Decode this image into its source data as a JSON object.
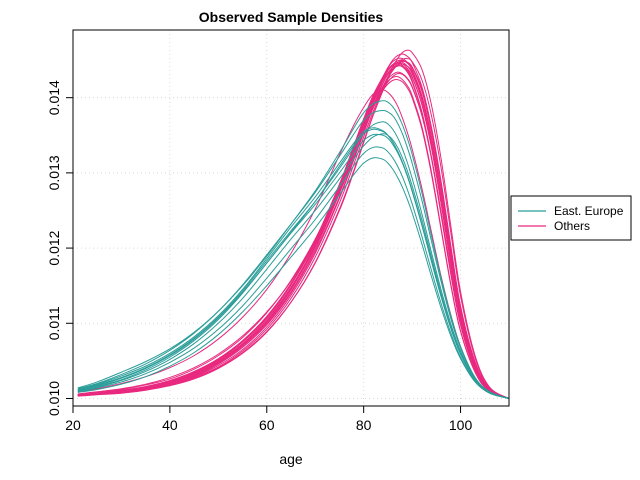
{
  "chart_data": {
    "type": "line",
    "title": "Observed Sample Densities",
    "xlabel": "age",
    "ylabel": "",
    "xlim": [
      20,
      110
    ],
    "ylim": [
      0.0099,
      0.0149
    ],
    "x_ticks": [
      20,
      40,
      60,
      80,
      100
    ],
    "y_ticks": [
      0.01,
      0.011,
      0.012,
      0.013,
      0.014
    ],
    "y_tick_labels": [
      "0.010",
      "0.011",
      "0.012",
      "0.013",
      "0.014"
    ],
    "grid": true,
    "legend": {
      "placement": "right",
      "entries": [
        "East. Europe",
        "Others"
      ]
    },
    "colors": {
      "East. Europe": "#2a9d99",
      "Others": "#e8297f"
    },
    "x": [
      21,
      25,
      30,
      35,
      40,
      45,
      50,
      55,
      60,
      65,
      70,
      75,
      78,
      80,
      82,
      84,
      85,
      86,
      87,
      88,
      89,
      90,
      92,
      94,
      96,
      98,
      100,
      103,
      106,
      110
    ],
    "series": [
      {
        "name": "East. Europe",
        "group": "East. Europe",
        "values": [
          0.0101,
          0.01015,
          0.01024,
          0.01036,
          0.01052,
          0.01073,
          0.011,
          0.01133,
          0.01172,
          0.01212,
          0.0125,
          0.01292,
          0.01319,
          0.01336,
          0.01348,
          0.01352,
          0.0135,
          0.01344,
          0.01334,
          0.0132,
          0.01303,
          0.01283,
          0.01238,
          0.01188,
          0.01139,
          0.01095,
          0.0106,
          0.01025,
          0.01008,
          0.01
        ]
      },
      {
        "name": "East. Europe",
        "group": "East. Europe",
        "values": [
          0.01012,
          0.01018,
          0.01028,
          0.01041,
          0.01058,
          0.0108,
          0.01108,
          0.01143,
          0.01183,
          0.01223,
          0.01262,
          0.01306,
          0.01334,
          0.01352,
          0.01364,
          0.01368,
          0.01365,
          0.01358,
          0.01347,
          0.01332,
          0.01314,
          0.01293,
          0.01246,
          0.01194,
          0.01144,
          0.01099,
          0.01063,
          0.01026,
          0.01008,
          0.01
        ]
      },
      {
        "name": "East. Europe",
        "group": "East. Europe",
        "values": [
          0.01009,
          0.01014,
          0.01022,
          0.01033,
          0.01048,
          0.01067,
          0.01092,
          0.01123,
          0.0116,
          0.01199,
          0.01238,
          0.01282,
          0.0131,
          0.01326,
          0.01334,
          0.01333,
          0.01328,
          0.0132,
          0.01309,
          0.01295,
          0.01278,
          0.01259,
          0.01216,
          0.0117,
          0.01126,
          0.01087,
          0.01055,
          0.01023,
          0.01007,
          0.01
        ]
      },
      {
        "name": "East. Europe",
        "group": "East. Europe",
        "values": [
          0.01011,
          0.01017,
          0.01027,
          0.0104,
          0.01057,
          0.01079,
          0.01107,
          0.01141,
          0.0118,
          0.01221,
          0.01262,
          0.01309,
          0.01337,
          0.01352,
          0.01358,
          0.01355,
          0.0135,
          0.01341,
          0.01329,
          0.01314,
          0.01296,
          0.01276,
          0.01231,
          0.01183,
          0.01136,
          0.01094,
          0.0106,
          0.01025,
          0.01008,
          0.01
        ]
      },
      {
        "name": "East. Europe",
        "group": "East. Europe",
        "values": [
          0.01013,
          0.0102,
          0.01032,
          0.01046,
          0.01064,
          0.01087,
          0.01116,
          0.01151,
          0.01191,
          0.01232,
          0.01274,
          0.01322,
          0.01352,
          0.0137,
          0.0138,
          0.01383,
          0.01381,
          0.01376,
          0.01366,
          0.01352,
          0.01334,
          0.01313,
          0.01264,
          0.01209,
          0.01155,
          0.01106,
          0.01067,
          0.01027,
          0.01008,
          0.01
        ]
      },
      {
        "name": "East. Europe",
        "group": "East. Europe",
        "values": [
          0.01008,
          0.01012,
          0.01019,
          0.01029,
          0.01043,
          0.01061,
          0.01085,
          0.01115,
          0.0115,
          0.01188,
          0.01227,
          0.01271,
          0.01298,
          0.01313,
          0.0132,
          0.01318,
          0.01313,
          0.01305,
          0.01294,
          0.01281,
          0.01265,
          0.01247,
          0.01206,
          0.01162,
          0.0112,
          0.01083,
          0.01053,
          0.01022,
          0.01007,
          0.01
        ]
      },
      {
        "name": "East. Europe",
        "group": "East. Europe",
        "values": [
          0.01014,
          0.01022,
          0.01035,
          0.01049,
          0.01066,
          0.01088,
          0.01116,
          0.0115,
          0.01189,
          0.01232,
          0.01276,
          0.01327,
          0.0136,
          0.0138,
          0.01392,
          0.01396,
          0.01394,
          0.01388,
          0.01378,
          0.01364,
          0.01346,
          0.01325,
          0.01274,
          0.01216,
          0.0116,
          0.0111,
          0.01069,
          0.01028,
          0.01009,
          0.01
        ]
      },
      {
        "name": "East. Europe",
        "group": "East. Europe",
        "values": [
          0.0101,
          0.01016,
          0.01025,
          0.01038,
          0.01055,
          0.01077,
          0.01105,
          0.0114,
          0.0118,
          0.0122,
          0.01258,
          0.013,
          0.01327,
          0.01343,
          0.01351,
          0.0135,
          0.01346,
          0.01338,
          0.01327,
          0.01313,
          0.01296,
          0.01276,
          0.01231,
          0.01182,
          0.01135,
          0.01093,
          0.01059,
          0.01024,
          0.01008,
          0.01
        ]
      },
      {
        "name": "East. Europe",
        "group": "East. Europe",
        "values": [
          0.01012,
          0.01019,
          0.0103,
          0.01043,
          0.0106,
          0.01082,
          0.0111,
          0.01145,
          0.01186,
          0.01228,
          0.01268,
          0.01313,
          0.0134,
          0.01355,
          0.0136,
          0.01356,
          0.0135,
          0.01341,
          0.01329,
          0.01314,
          0.01297,
          0.01277,
          0.01232,
          0.01183,
          0.01136,
          0.01094,
          0.0106,
          0.01025,
          0.01008,
          0.01
        ]
      },
      {
        "name": "Others",
        "group": "Others",
        "values": [
          0.01005,
          0.01007,
          0.0101,
          0.01014,
          0.01021,
          0.01032,
          0.01048,
          0.0107,
          0.01101,
          0.01145,
          0.01203,
          0.01278,
          0.0133,
          0.01365,
          0.01397,
          0.01423,
          0.01433,
          0.0144,
          0.01443,
          0.01441,
          0.01434,
          0.01421,
          0.0138,
          0.01319,
          0.01243,
          0.01165,
          0.01098,
          0.01038,
          0.0101,
          0.01
        ]
      },
      {
        "name": "Others",
        "group": "Others",
        "values": [
          0.01005,
          0.01007,
          0.0101,
          0.01015,
          0.01022,
          0.01033,
          0.01049,
          0.01072,
          0.01103,
          0.01146,
          0.01202,
          0.01273,
          0.01322,
          0.01356,
          0.01387,
          0.01411,
          0.01421,
          0.01428,
          0.01432,
          0.01431,
          0.01425,
          0.01414,
          0.01377,
          0.0132,
          0.01247,
          0.0117,
          0.01101,
          0.01039,
          0.0101,
          0.01
        ]
      },
      {
        "name": "Others",
        "group": "Others",
        "values": [
          0.01004,
          0.01006,
          0.01009,
          0.01013,
          0.01019,
          0.01029,
          0.01044,
          0.01065,
          0.01095,
          0.01137,
          0.01193,
          0.01266,
          0.01318,
          0.01353,
          0.01387,
          0.01415,
          0.01428,
          0.01437,
          0.01443,
          0.01445,
          0.01442,
          0.01434,
          0.01402,
          0.01348,
          0.01275,
          0.01192,
          0.01116,
          0.01046,
          0.01012,
          0.01
        ]
      },
      {
        "name": "Others",
        "group": "Others",
        "values": [
          0.01005,
          0.01007,
          0.0101,
          0.01015,
          0.01022,
          0.01034,
          0.01051,
          0.01075,
          0.01107,
          0.01151,
          0.01209,
          0.01282,
          0.01333,
          0.01368,
          0.014,
          0.01425,
          0.01436,
          0.01443,
          0.01446,
          0.01445,
          0.01439,
          0.01428,
          0.01391,
          0.01333,
          0.01258,
          0.01178,
          0.01106,
          0.01041,
          0.01011,
          0.01
        ]
      },
      {
        "name": "Others",
        "group": "Others",
        "values": [
          0.01004,
          0.01006,
          0.01008,
          0.01012,
          0.01018,
          0.01028,
          0.01042,
          0.01063,
          0.01092,
          0.01133,
          0.01188,
          0.0126,
          0.01312,
          0.01348,
          0.01382,
          0.01412,
          0.01426,
          0.01436,
          0.01444,
          0.01448,
          0.01447,
          0.01441,
          0.01412,
          0.0136,
          0.01288,
          0.01203,
          0.01123,
          0.01049,
          0.01013,
          0.01
        ]
      },
      {
        "name": "Others",
        "group": "Others",
        "values": [
          0.01006,
          0.01008,
          0.01012,
          0.01018,
          0.01026,
          0.01039,
          0.01057,
          0.01081,
          0.01114,
          0.01157,
          0.01212,
          0.0128,
          0.01328,
          0.0136,
          0.01388,
          0.0141,
          0.01418,
          0.01423,
          0.01424,
          0.01421,
          0.01413,
          0.014,
          0.01359,
          0.01298,
          0.01224,
          0.0115,
          0.01089,
          0.01035,
          0.01009,
          0.01
        ]
      },
      {
        "name": "Others",
        "group": "Others",
        "values": [
          0.01004,
          0.01006,
          0.01009,
          0.01013,
          0.0102,
          0.0103,
          0.01046,
          0.01068,
          0.01099,
          0.01142,
          0.01199,
          0.01273,
          0.01326,
          0.01362,
          0.01396,
          0.01424,
          0.01436,
          0.01444,
          0.01449,
          0.0145,
          0.01446,
          0.01437,
          0.01403,
          0.01347,
          0.01272,
          0.01189,
          0.01113,
          0.01045,
          0.01012,
          0.01
        ]
      },
      {
        "name": "Others",
        "group": "Others",
        "values": [
          0.01005,
          0.01007,
          0.01011,
          0.01016,
          0.01024,
          0.01036,
          0.01053,
          0.01077,
          0.01109,
          0.01152,
          0.01207,
          0.01277,
          0.01326,
          0.0136,
          0.01391,
          0.01415,
          0.01425,
          0.01431,
          0.01434,
          0.01432,
          0.01426,
          0.01415,
          0.01377,
          0.0132,
          0.01246,
          0.01168,
          0.011,
          0.01038,
          0.0101,
          0.01
        ]
      },
      {
        "name": "Others",
        "group": "Others",
        "values": [
          0.01003,
          0.01005,
          0.01007,
          0.01011,
          0.01017,
          0.01026,
          0.0104,
          0.0106,
          0.01088,
          0.01128,
          0.01181,
          0.01252,
          0.01304,
          0.01342,
          0.01378,
          0.0141,
          0.01425,
          0.01437,
          0.01446,
          0.01451,
          0.01452,
          0.01448,
          0.01424,
          0.01376,
          0.01306,
          0.0122,
          0.01136,
          0.01054,
          0.01014,
          0.01
        ]
      },
      {
        "name": "Others",
        "group": "Others",
        "values": [
          0.01005,
          0.01007,
          0.0101,
          0.01015,
          0.01023,
          0.01035,
          0.01052,
          0.01076,
          0.01109,
          0.01153,
          0.01211,
          0.01285,
          0.01337,
          0.01372,
          0.01404,
          0.01428,
          0.01438,
          0.01444,
          0.01446,
          0.01443,
          0.01436,
          0.01423,
          0.01382,
          0.01321,
          0.01245,
          0.01166,
          0.01098,
          0.01038,
          0.0101,
          0.01
        ]
      },
      {
        "name": "Others",
        "group": "Others",
        "values": [
          0.01004,
          0.01006,
          0.01009,
          0.01013,
          0.0102,
          0.01031,
          0.01047,
          0.0107,
          0.01101,
          0.01145,
          0.01202,
          0.01275,
          0.01327,
          0.01362,
          0.01394,
          0.0142,
          0.01431,
          0.01438,
          0.01442,
          0.01442,
          0.01437,
          0.01427,
          0.01392,
          0.01336,
          0.01262,
          0.01181,
          0.01108,
          0.01042,
          0.01011,
          0.01
        ]
      },
      {
        "name": "Others",
        "group": "Others",
        "values": [
          0.01006,
          0.01009,
          0.01013,
          0.01019,
          0.01028,
          0.01041,
          0.01059,
          0.01083,
          0.01115,
          0.01156,
          0.0121,
          0.01278,
          0.01327,
          0.0136,
          0.0139,
          0.01413,
          0.01422,
          0.01427,
          0.01428,
          0.01424,
          0.01416,
          0.01403,
          0.01362,
          0.01301,
          0.01226,
          0.01152,
          0.0109,
          0.01035,
          0.01009,
          0.01
        ]
      },
      {
        "name": "Others",
        "group": "Others",
        "values": [
          0.01004,
          0.01006,
          0.01008,
          0.01012,
          0.01018,
          0.01027,
          0.01041,
          0.01061,
          0.01089,
          0.01128,
          0.0118,
          0.0125,
          0.01302,
          0.0134,
          0.01377,
          0.0141,
          0.01427,
          0.01441,
          0.01452,
          0.0146,
          0.01463,
          0.0146,
          0.01438,
          0.0139,
          0.01318,
          0.01229,
          0.01142,
          0.01057,
          0.01015,
          0.01
        ]
      },
      {
        "name": "Others",
        "group": "Others",
        "values": [
          0.01005,
          0.01007,
          0.0101,
          0.01015,
          0.01022,
          0.01033,
          0.0105,
          0.01073,
          0.01105,
          0.01148,
          0.01205,
          0.01278,
          0.0133,
          0.01366,
          0.01398,
          0.01425,
          0.01436,
          0.01443,
          0.01447,
          0.01447,
          0.01442,
          0.01432,
          0.01397,
          0.0134,
          0.01265,
          0.01183,
          0.0111,
          0.01043,
          0.01011,
          0.01
        ]
      },
      {
        "name": "Others",
        "group": "Others",
        "values": [
          0.01004,
          0.01006,
          0.01009,
          0.01013,
          0.0102,
          0.0103,
          0.01046,
          0.01068,
          0.01098,
          0.0114,
          0.01196,
          0.01268,
          0.0132,
          0.01356,
          0.0139,
          0.01419,
          0.01432,
          0.01441,
          0.01447,
          0.01449,
          0.01447,
          0.0144,
          0.01409,
          0.01355,
          0.01282,
          0.01198,
          0.01119,
          0.01047,
          0.01012,
          0.01
        ]
      },
      {
        "name": "Others",
        "group": "Others",
        "values": [
          0.01009,
          0.01013,
          0.0102,
          0.01029,
          0.01041,
          0.01057,
          0.01079,
          0.01108,
          0.01145,
          0.01193,
          0.01252,
          0.01324,
          0.01364,
          0.01387,
          0.01405,
          0.0141,
          0.01407,
          0.014,
          0.01389,
          0.01373,
          0.01354,
          0.01332,
          0.0128,
          0.01221,
          0.01162,
          0.01111,
          0.01069,
          0.01027,
          0.01008,
          0.01
        ]
      },
      {
        "name": "Others",
        "group": "Others",
        "values": [
          0.01005,
          0.01007,
          0.0101,
          0.01015,
          0.01023,
          0.01035,
          0.01052,
          0.01076,
          0.01108,
          0.01152,
          0.01209,
          0.01282,
          0.01334,
          0.01369,
          0.01402,
          0.01428,
          0.0144,
          0.01448,
          0.01452,
          0.01452,
          0.01447,
          0.01436,
          0.01399,
          0.0134,
          0.01263,
          0.0118,
          0.01107,
          0.01042,
          0.01011,
          0.01
        ]
      },
      {
        "name": "Others",
        "group": "Others",
        "values": [
          0.01004,
          0.01006,
          0.01009,
          0.01014,
          0.01021,
          0.01032,
          0.01048,
          0.01071,
          0.01102,
          0.01146,
          0.01203,
          0.01276,
          0.01328,
          0.01364,
          0.01398,
          0.01426,
          0.0144,
          0.0145,
          0.01456,
          0.01458,
          0.01455,
          0.01447,
          0.01415,
          0.0136,
          0.01285,
          0.012,
          0.0112,
          0.01047,
          0.01012,
          0.01
        ]
      }
    ]
  }
}
